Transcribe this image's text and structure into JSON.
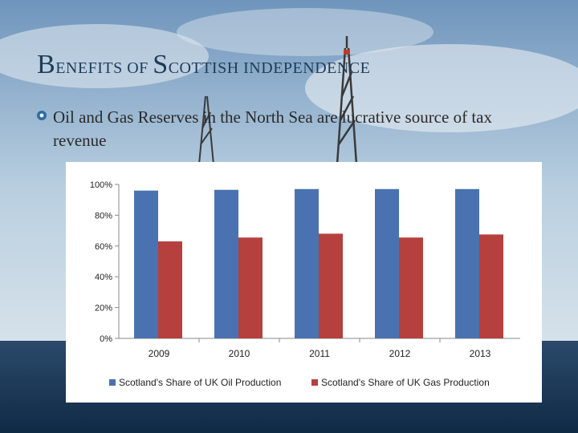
{
  "slide": {
    "title_prefix_cap": "B",
    "title_prefix_rest": "enefits of",
    "title_main_cap": "S",
    "title_main_rest": "cottish",
    "title_suffix": "independence",
    "bullet_text": "Oil and Gas Reserves in the North Sea are lucrative source of tax revenue"
  },
  "colors": {
    "oil": "#4a72b0",
    "gas": "#b5403d",
    "title": "#1f3b57"
  },
  "chart_data": {
    "type": "bar",
    "categories": [
      "2009",
      "2010",
      "2011",
      "2012",
      "2013"
    ],
    "series": [
      {
        "name": "Scotland's Share of UK Oil Production",
        "values": [
          96,
          96.5,
          97,
          97,
          97
        ]
      },
      {
        "name": "Scotland's Share of UK Gas Production",
        "values": [
          63,
          65.5,
          68,
          65.5,
          67.5
        ]
      }
    ],
    "ylim": [
      0,
      100
    ],
    "yticks": [
      "0%",
      "20%",
      "40%",
      "60%",
      "80%",
      "100%"
    ],
    "ytick_values": [
      0,
      20,
      40,
      60,
      80,
      100
    ],
    "grid": false,
    "legend_position": "bottom"
  }
}
